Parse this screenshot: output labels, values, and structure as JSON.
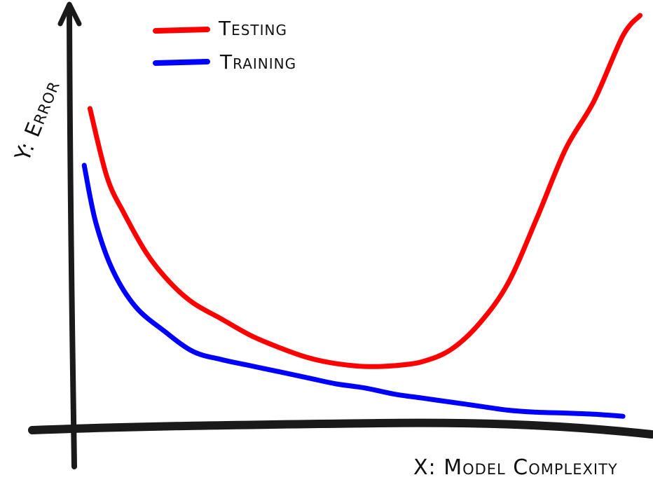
{
  "chart_data": {
    "type": "line",
    "title": "",
    "xlabel": "X: Model Complexity",
    "ylabel": "Y: Error",
    "grid": false,
    "legend_position": "top-left",
    "xlim": [
      0,
      10
    ],
    "ylim": [
      0,
      10
    ],
    "series": [
      {
        "name": "Testing",
        "color": "#ff0000",
        "x": [
          0.2,
          0.5,
          0.8,
          1.2,
          1.6,
          2.0,
          2.5,
          3.0,
          3.5,
          4.0,
          4.5,
          5.0,
          5.5,
          6.0,
          6.5,
          7.0,
          7.5,
          8.0,
          8.5,
          9.0,
          9.5,
          9.8
        ],
        "values": [
          7.7,
          6.0,
          5.1,
          4.1,
          3.4,
          2.9,
          2.5,
          2.1,
          1.8,
          1.55,
          1.4,
          1.33,
          1.35,
          1.45,
          1.75,
          2.4,
          3.4,
          5.0,
          6.7,
          7.9,
          9.5,
          10.0
        ]
      },
      {
        "name": "Training",
        "color": "#0000ff",
        "x": [
          0.1,
          0.3,
          0.6,
          1.0,
          1.5,
          2.0,
          2.5,
          3.0,
          3.5,
          4.0,
          4.5,
          5.0,
          5.5,
          6.0,
          6.5,
          7.0,
          7.5,
          8.0,
          8.5,
          9.0,
          9.5
        ],
        "values": [
          6.3,
          4.9,
          3.7,
          2.8,
          2.2,
          1.7,
          1.5,
          1.35,
          1.2,
          1.05,
          0.9,
          0.8,
          0.65,
          0.55,
          0.45,
          0.35,
          0.25,
          0.2,
          0.18,
          0.15,
          0.1
        ]
      }
    ]
  },
  "legend": {
    "items": [
      {
        "label": "Testing",
        "color": "#ff0000"
      },
      {
        "label": "Training",
        "color": "#0000ff"
      }
    ]
  },
  "colors": {
    "axis": "#1a1a1a",
    "background": "#ffffff"
  }
}
